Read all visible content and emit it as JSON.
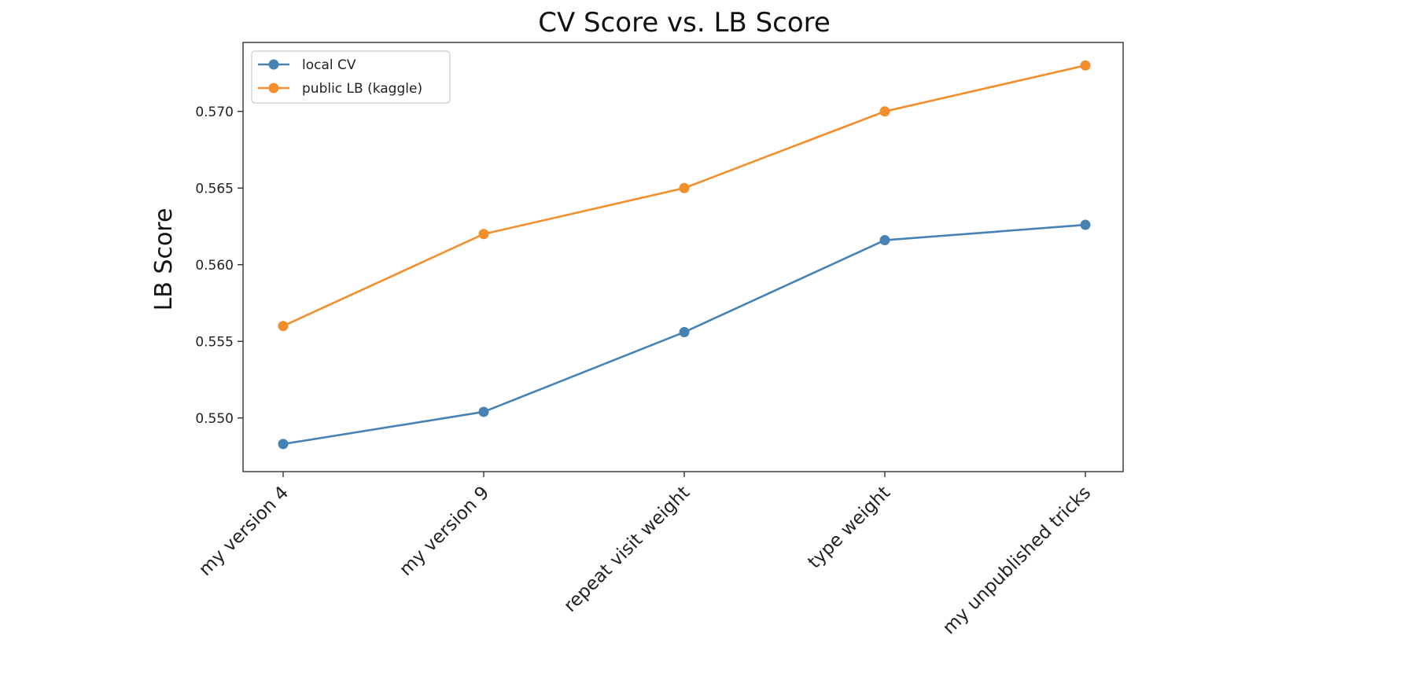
{
  "chart_data": {
    "type": "line",
    "title": "CV Score vs. LB Score",
    "xlabel": "",
    "ylabel": "LB Score",
    "categories": [
      "my version 4",
      "my version 9",
      "repeat visit weight",
      "type weight",
      "my unpublished tricks"
    ],
    "ylim": [
      0.5465,
      0.5745
    ],
    "yticks": [
      "0.550",
      "0.555",
      "0.560",
      "0.565",
      "0.570"
    ],
    "grid": false,
    "legend_position": "upper-left",
    "series": [
      {
        "name": "local CV",
        "color": "#4682b4",
        "values": [
          0.5483,
          0.5504,
          0.5556,
          0.5616,
          0.5626
        ]
      },
      {
        "name": "public LB (kaggle)",
        "color": "#f28e2c",
        "values": [
          0.556,
          0.562,
          0.565,
          0.57,
          0.573
        ]
      }
    ]
  }
}
